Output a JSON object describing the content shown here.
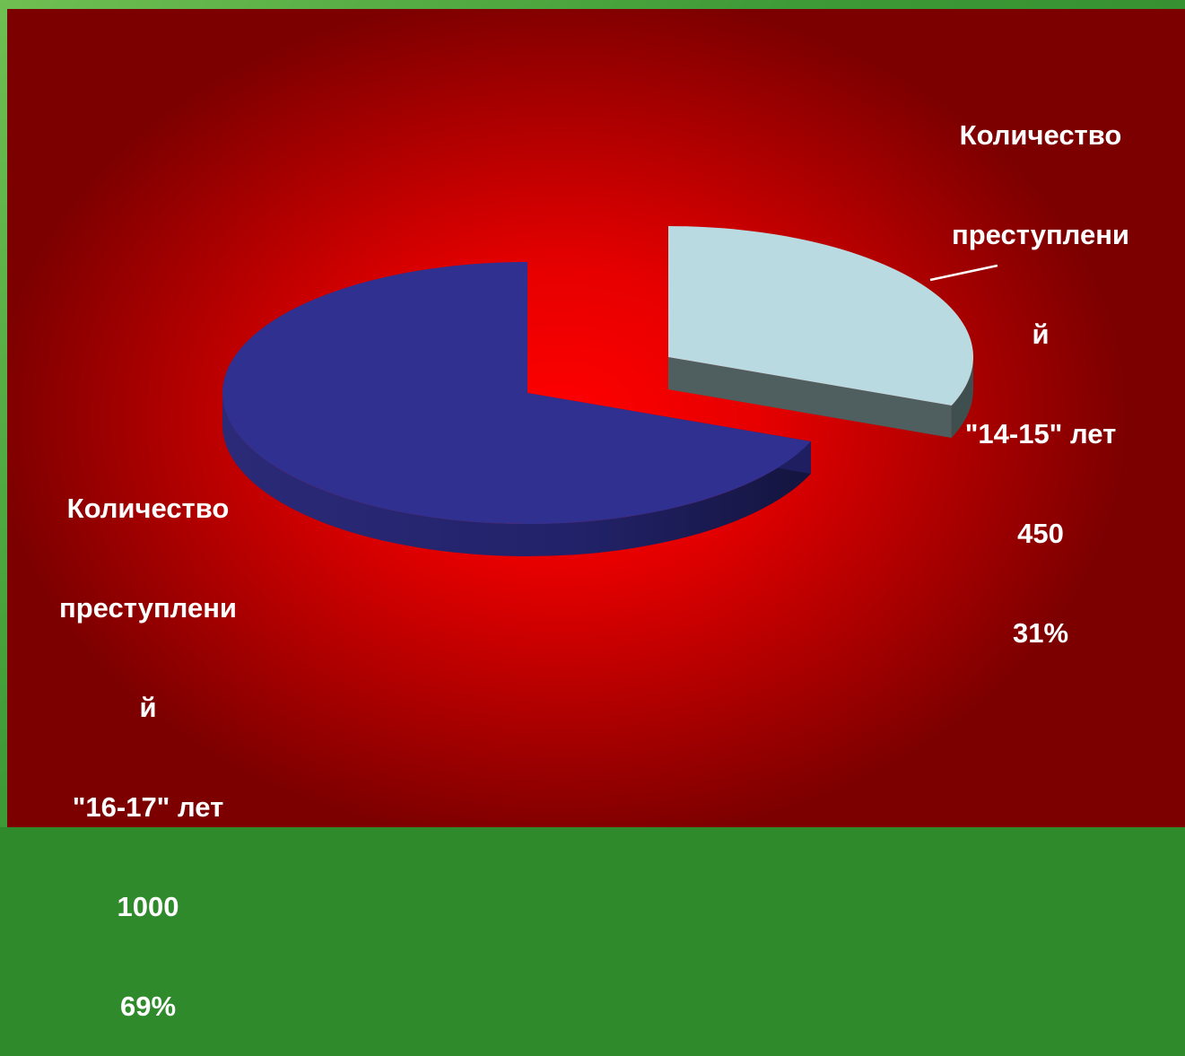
{
  "chart_data": {
    "type": "pie",
    "three_d": true,
    "exploded_slice": "14-15",
    "slices": [
      {
        "label_lines": [
          "Количество",
          "преступлени",
          "й",
          "\"14-15\" лет"
        ],
        "value": 450,
        "value_label": "450",
        "percent": 31,
        "percent_label": "31%",
        "color": "#b8dae0",
        "side_color": "#4f5f5f"
      },
      {
        "label_lines": [
          "Количество",
          "преступлени",
          "й",
          "\"16-17\" лет"
        ],
        "value": 1000,
        "value_label": "1000",
        "percent": 69,
        "percent_label": "69%",
        "color": "#303090",
        "side_color": "#1c1c5a"
      }
    ]
  },
  "colors": {
    "background_center": "#ff0000",
    "background_edge": "#7d0000",
    "frame": "#3d9a36",
    "leader_line": "#ffffff"
  }
}
